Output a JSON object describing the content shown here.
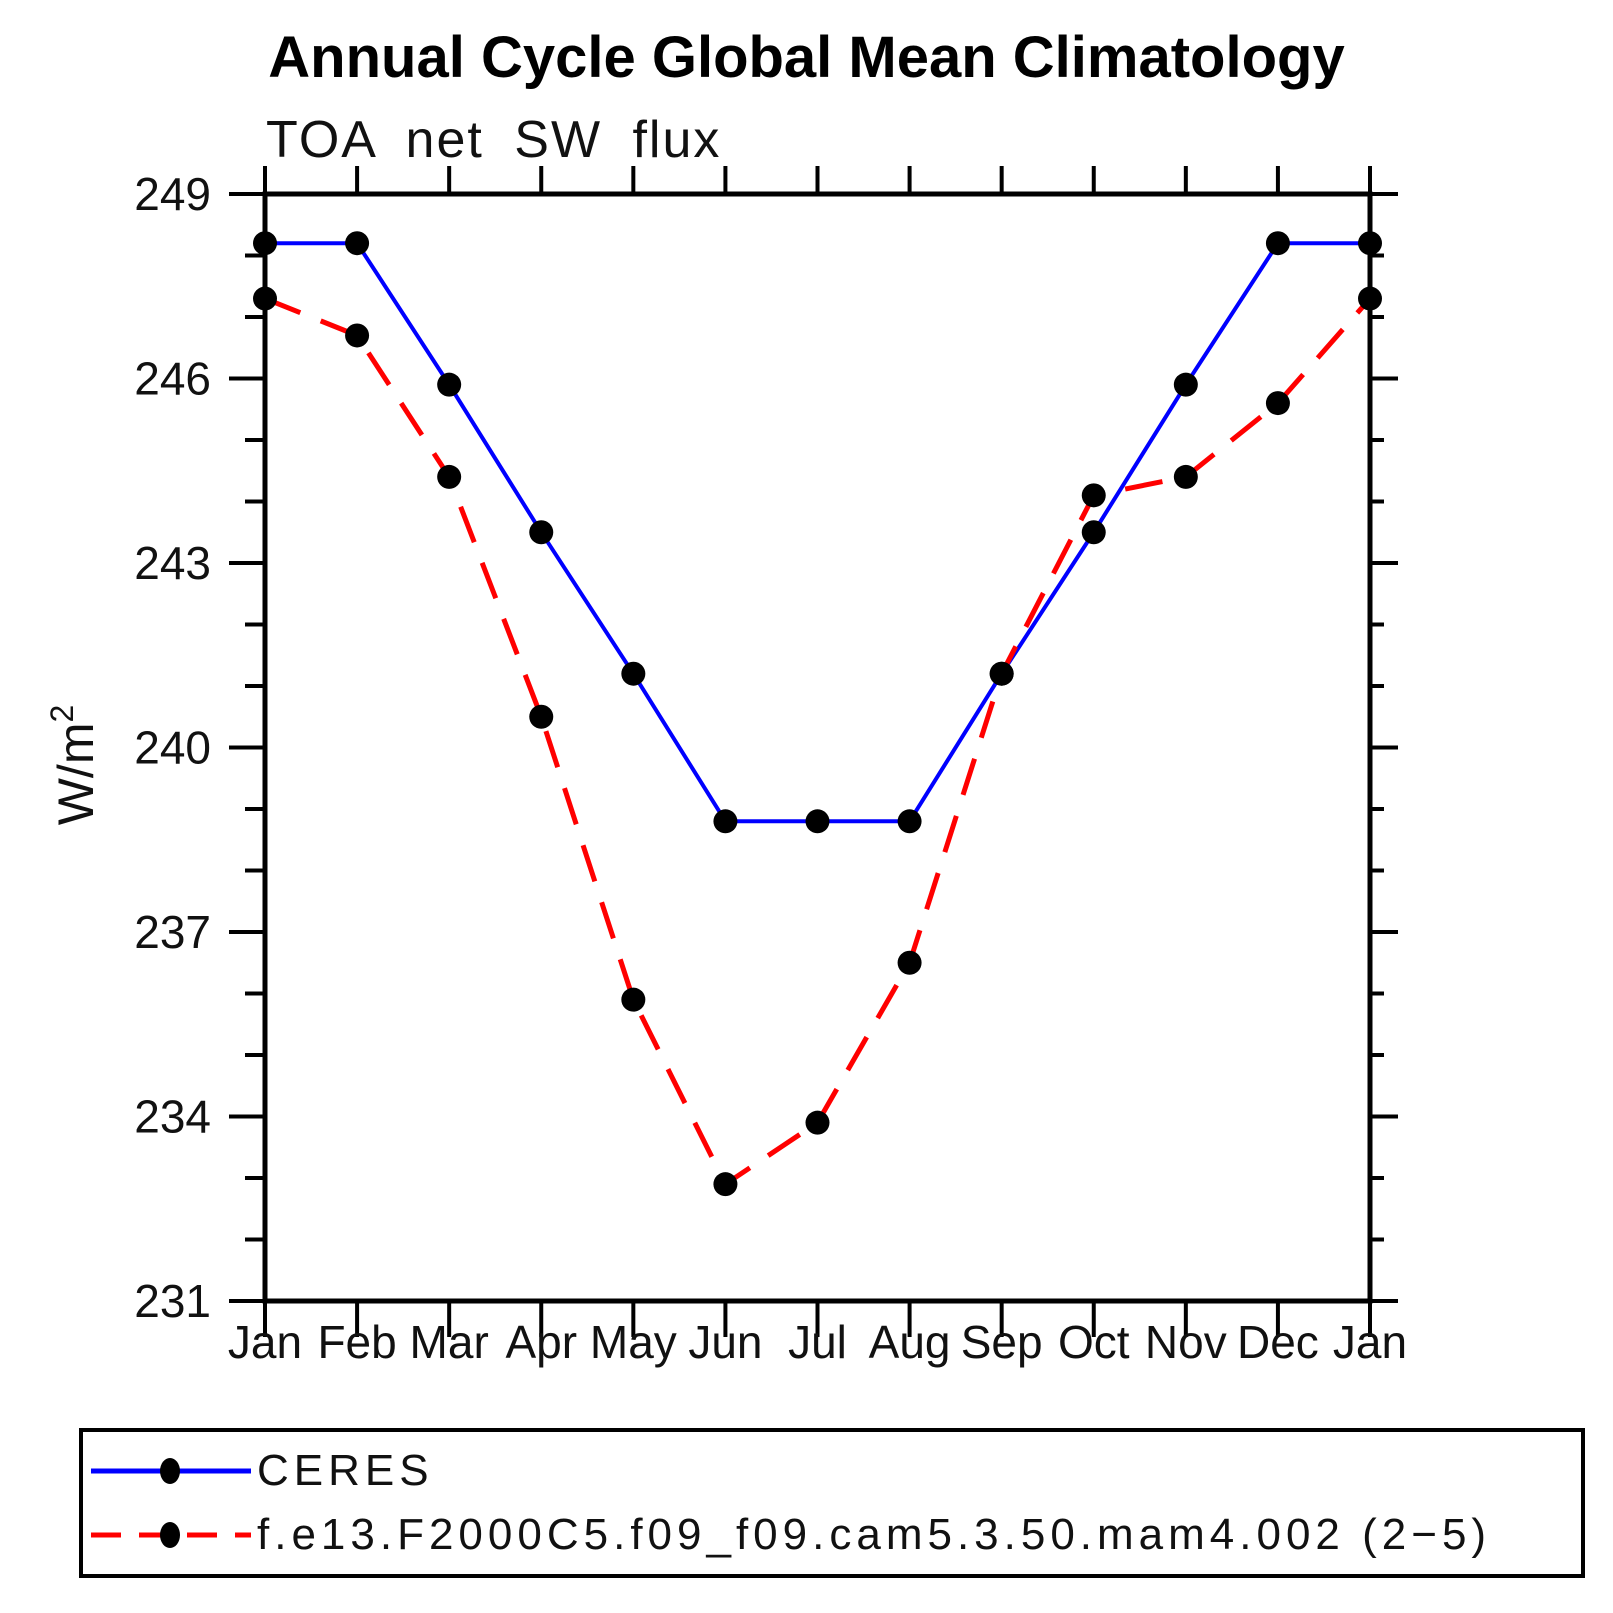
{
  "chart_data": {
    "type": "line",
    "title": "Annual Cycle Global Mean Climatology",
    "subtitle": "TOA net SW flux",
    "ylabel_base": "W/m",
    "ylabel_sup": "2",
    "ylim": [
      231,
      249
    ],
    "y_major_ticks": [
      249,
      246,
      243,
      240,
      237,
      234,
      231
    ],
    "y_minor_step": 1,
    "x_categories": [
      "Jan",
      "Feb",
      "Mar",
      "Apr",
      "May",
      "Jun",
      "Jul",
      "Aug",
      "Sep",
      "Oct",
      "Nov",
      "Dec",
      "Jan"
    ],
    "grid": false,
    "legend_position": "bottom",
    "axis_color": "#000000",
    "series": [
      {
        "name": "CERES",
        "color": "#0000ff",
        "line_style": "solid",
        "marker": "filled-circle",
        "marker_color": "#000000",
        "values": [
          248.2,
          248.2,
          245.9,
          243.5,
          241.2,
          238.8,
          238.8,
          238.8,
          241.2,
          243.5,
          245.9,
          248.2,
          248.2
        ]
      },
      {
        "name": "f.e13.F2000C5.f09_f09.cam5.3.50.mam4.002 (2−5)",
        "color": "#ff0000",
        "line_style": "dashed",
        "marker": "filled-circle",
        "marker_color": "#000000",
        "values": [
          247.3,
          246.7,
          244.4,
          240.5,
          235.9,
          232.9,
          233.9,
          236.5,
          241.2,
          244.1,
          244.4,
          245.6,
          247.3
        ]
      }
    ]
  }
}
